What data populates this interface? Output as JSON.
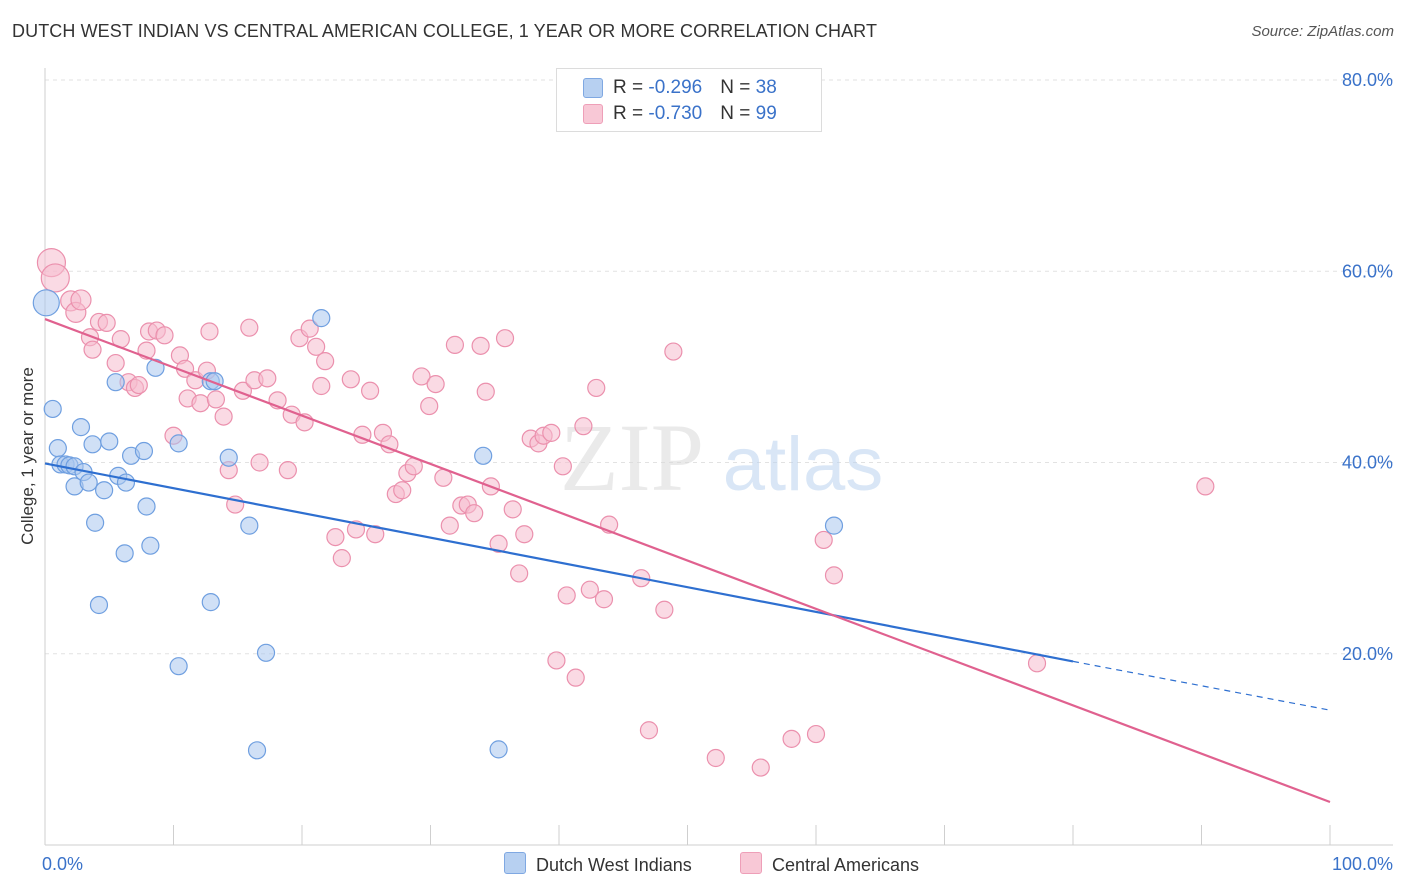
{
  "header": {
    "title": "DUTCH WEST INDIAN VS CENTRAL AMERICAN COLLEGE, 1 YEAR OR MORE CORRELATION CHART",
    "source": "Source: ZipAtlas.com"
  },
  "watermark": {
    "zip": "ZIP",
    "atlas": "atlas"
  },
  "legend_stats": [
    {
      "r_label": "R = ",
      "r_value": "-0.296",
      "n_label": "N = ",
      "n_value": "38"
    },
    {
      "r_label": "R = ",
      "r_value": "-0.730",
      "n_label": "N = ",
      "n_value": "99"
    }
  ],
  "colors": {
    "blue_fill": "#a9c6ee",
    "blue_stroke": "#6f9fe0",
    "blue_line": "#2e6fd0",
    "pink_fill": "#f6bccd",
    "pink_stroke": "#eb90ad",
    "pink_line": "#e0618f",
    "axis_label": "#3a72c9",
    "grid": "#e2e2e2"
  },
  "chart_data": {
    "type": "scatter",
    "title": "DUTCH WEST INDIAN VS CENTRAL AMERICAN COLLEGE, 1 YEAR OR MORE CORRELATION CHART",
    "xlabel": "",
    "ylabel": "College, 1 year or more",
    "xlim": [
      0,
      100
    ],
    "ylim": [
      0,
      80
    ],
    "x_tick_labels": [
      "0.0%",
      "100.0%"
    ],
    "y_ticks": [
      20,
      40,
      60,
      80
    ],
    "y_tick_labels": [
      "20.0%",
      "40.0%",
      "60.0%",
      "80.0%"
    ],
    "grid": true,
    "series": [
      {
        "name": "Dutch West Indians",
        "color": "blue",
        "r": -0.296,
        "n": 38,
        "points": [
          [
            0.1,
            56.7
          ],
          [
            0.6,
            45.6
          ],
          [
            1.0,
            41.5
          ],
          [
            1.2,
            39.8
          ],
          [
            1.6,
            39.8
          ],
          [
            1.9,
            39.7
          ],
          [
            2.3,
            39.6
          ],
          [
            2.3,
            37.5
          ],
          [
            2.8,
            43.7
          ],
          [
            3.0,
            39.0
          ],
          [
            3.4,
            37.9
          ],
          [
            3.7,
            41.9
          ],
          [
            3.9,
            33.7
          ],
          [
            4.2,
            25.1
          ],
          [
            4.6,
            37.1
          ],
          [
            5.0,
            42.2
          ],
          [
            5.5,
            48.4
          ],
          [
            5.7,
            38.6
          ],
          [
            6.2,
            30.5
          ],
          [
            6.3,
            37.9
          ],
          [
            6.7,
            40.7
          ],
          [
            7.7,
            41.2
          ],
          [
            7.9,
            35.4
          ],
          [
            8.2,
            31.3
          ],
          [
            8.6,
            49.9
          ],
          [
            10.4,
            18.7
          ],
          [
            10.4,
            42.0
          ],
          [
            12.9,
            25.4
          ],
          [
            12.9,
            48.5
          ],
          [
            13.2,
            48.5
          ],
          [
            14.3,
            40.5
          ],
          [
            15.9,
            33.4
          ],
          [
            16.5,
            9.9
          ],
          [
            17.2,
            20.1
          ],
          [
            21.5,
            55.1
          ],
          [
            34.1,
            40.7
          ],
          [
            35.3,
            10.0
          ],
          [
            61.4,
            33.4
          ]
        ],
        "trend": {
          "x0": 0,
          "y0": 39.9,
          "x1": 80,
          "y1": 19.2,
          "dashed_to_x": 100,
          "dashed_to_y": 14.1
        }
      },
      {
        "name": "Central Americans",
        "color": "pink",
        "r": -0.73,
        "n": 99,
        "points": [
          [
            0.5,
            60.9
          ],
          [
            0.8,
            59.3
          ],
          [
            2.0,
            56.9
          ],
          [
            2.4,
            55.7
          ],
          [
            2.8,
            57.0
          ],
          [
            3.5,
            53.1
          ],
          [
            3.7,
            51.8
          ],
          [
            4.2,
            54.7
          ],
          [
            4.8,
            54.6
          ],
          [
            5.5,
            50.4
          ],
          [
            5.9,
            52.9
          ],
          [
            6.5,
            48.4
          ],
          [
            7.0,
            47.8
          ],
          [
            7.3,
            48.1
          ],
          [
            7.9,
            51.7
          ],
          [
            8.1,
            53.7
          ],
          [
            8.7,
            53.8
          ],
          [
            9.3,
            53.3
          ],
          [
            10.0,
            42.8
          ],
          [
            10.5,
            51.2
          ],
          [
            10.9,
            49.8
          ],
          [
            11.1,
            46.7
          ],
          [
            11.7,
            48.6
          ],
          [
            12.1,
            46.2
          ],
          [
            12.6,
            49.6
          ],
          [
            12.8,
            53.7
          ],
          [
            13.3,
            46.6
          ],
          [
            13.9,
            44.8
          ],
          [
            14.3,
            39.2
          ],
          [
            14.8,
            35.6
          ],
          [
            15.4,
            47.5
          ],
          [
            15.9,
            54.1
          ],
          [
            16.3,
            48.6
          ],
          [
            16.7,
            40.0
          ],
          [
            17.3,
            48.8
          ],
          [
            18.1,
            46.5
          ],
          [
            18.9,
            39.2
          ],
          [
            19.2,
            45.0
          ],
          [
            19.8,
            53.0
          ],
          [
            20.2,
            44.2
          ],
          [
            20.6,
            54.0
          ],
          [
            21.1,
            52.1
          ],
          [
            21.5,
            48.0
          ],
          [
            21.8,
            50.6
          ],
          [
            22.6,
            32.2
          ],
          [
            23.1,
            30.0
          ],
          [
            23.8,
            48.7
          ],
          [
            24.2,
            33.0
          ],
          [
            24.7,
            42.9
          ],
          [
            25.3,
            47.5
          ],
          [
            25.7,
            32.5
          ],
          [
            26.3,
            43.1
          ],
          [
            26.8,
            41.9
          ],
          [
            27.3,
            36.7
          ],
          [
            27.8,
            37.1
          ],
          [
            28.2,
            38.9
          ],
          [
            28.7,
            39.6
          ],
          [
            29.3,
            49.0
          ],
          [
            29.9,
            45.9
          ],
          [
            30.4,
            48.2
          ],
          [
            31.0,
            38.4
          ],
          [
            31.5,
            33.4
          ],
          [
            31.9,
            52.3
          ],
          [
            32.4,
            35.5
          ],
          [
            32.9,
            35.6
          ],
          [
            33.4,
            34.7
          ],
          [
            33.9,
            52.2
          ],
          [
            34.3,
            47.4
          ],
          [
            34.7,
            37.5
          ],
          [
            35.3,
            31.5
          ],
          [
            35.8,
            53.0
          ],
          [
            36.4,
            35.1
          ],
          [
            36.9,
            28.4
          ],
          [
            37.3,
            32.5
          ],
          [
            37.8,
            42.5
          ],
          [
            38.4,
            42.0
          ],
          [
            38.8,
            42.8
          ],
          [
            39.4,
            43.1
          ],
          [
            39.8,
            19.3
          ],
          [
            40.3,
            39.6
          ],
          [
            40.6,
            26.1
          ],
          [
            41.3,
            17.5
          ],
          [
            41.9,
            43.8
          ],
          [
            42.4,
            26.7
          ],
          [
            42.9,
            47.8
          ],
          [
            43.5,
            25.7
          ],
          [
            43.9,
            33.5
          ],
          [
            46.4,
            27.9
          ],
          [
            47.0,
            12.0
          ],
          [
            48.2,
            24.6
          ],
          [
            48.9,
            51.6
          ],
          [
            52.2,
            9.1
          ],
          [
            55.7,
            8.1
          ],
          [
            58.1,
            11.1
          ],
          [
            60.0,
            11.6
          ],
          [
            60.6,
            31.9
          ],
          [
            61.4,
            28.2
          ],
          [
            77.2,
            19.0
          ],
          [
            90.3,
            37.5
          ]
        ],
        "trend": {
          "x0": 0,
          "y0": 55.0,
          "x1": 100,
          "y1": 4.5
        }
      }
    ]
  },
  "bottom_legend": [
    {
      "label": "Dutch West Indians"
    },
    {
      "label": "Central Americans"
    }
  ]
}
